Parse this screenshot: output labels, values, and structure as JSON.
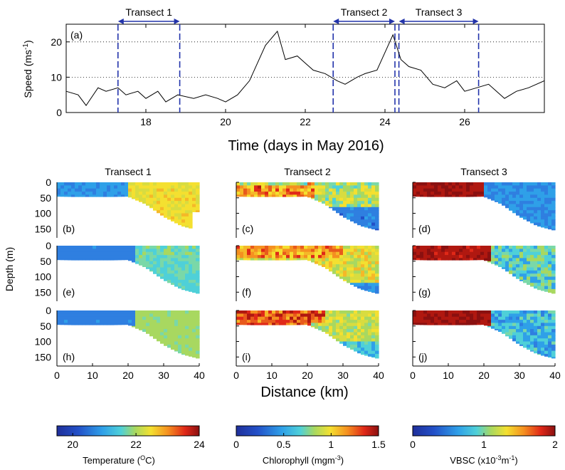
{
  "chart_data": [
    {
      "type": "line",
      "panel": "(a)",
      "ylabel": "Speed (ms-1)",
      "xlabel": "Time (days in May 2016)",
      "xlim": [
        16,
        28
      ],
      "ylim": [
        0,
        25
      ],
      "xticks": [
        "18",
        "20",
        "22",
        "24",
        "26"
      ],
      "yticks": [
        "0",
        "10",
        "20"
      ],
      "gridlines_y": [
        10,
        20
      ],
      "series": [
        {
          "name": "Speed",
          "x": [
            16.0,
            16.3,
            16.5,
            16.8,
            17.0,
            17.3,
            17.5,
            17.8,
            18.0,
            18.3,
            18.5,
            18.8,
            19.2,
            19.5,
            19.8,
            20.0,
            20.3,
            20.6,
            21.0,
            21.3,
            21.5,
            21.8,
            22.0,
            22.2,
            22.5,
            22.8,
            23.0,
            23.3,
            23.5,
            23.8,
            24.0,
            24.2,
            24.4,
            24.6,
            24.9,
            25.2,
            25.5,
            25.8,
            26.0,
            26.3,
            26.6,
            27.0,
            27.3,
            27.6,
            28.0
          ],
          "values": [
            6,
            5,
            2,
            7,
            6,
            7,
            5,
            6,
            4,
            6,
            3,
            5,
            4,
            5,
            4,
            3,
            5,
            9,
            19,
            23,
            15,
            16,
            14,
            12,
            11,
            9,
            8,
            10,
            11,
            12,
            17,
            22,
            15,
            13,
            12,
            8,
            7,
            9,
            6,
            7,
            8,
            4,
            6,
            7,
            9
          ]
        }
      ],
      "vlines": [
        {
          "label": "Transect 1",
          "start": 17.3,
          "end": 18.85
        },
        {
          "label": "Transect 2",
          "start": 22.7,
          "end": 24.25
        },
        {
          "label": "Transect 3",
          "start": 24.35,
          "end": 26.35
        }
      ]
    },
    {
      "type": "heatmap",
      "description_free": true,
      "columns": [
        "Transect 1",
        "Transect 2",
        "Transect 3"
      ],
      "rows_vars": [
        "Temperature",
        "Chlorophyll",
        "VBSC"
      ],
      "panel_labels": [
        [
          "(b)",
          "(c)",
          "(d)"
        ],
        [
          "(e)",
          "(f)",
          "(g)"
        ],
        [
          "(h)",
          "(i)",
          "(j)"
        ]
      ],
      "ylabel": "Depth (m)",
      "xlabel": "Distance (km)",
      "xlim": [
        0,
        40
      ],
      "ylim": [
        170,
        0
      ],
      "xticks": [
        "0",
        "10",
        "20",
        "30",
        "40"
      ],
      "yticks": [
        "0",
        "50",
        "100",
        "150"
      ],
      "seabed_depth_km": [
        0,
        5,
        10,
        15,
        20,
        25,
        30,
        35,
        40
      ],
      "seabed_depth_m": [
        45,
        46,
        46,
        46,
        45,
        70,
        110,
        140,
        155
      ],
      "colorbars": [
        {
          "label": "Temperature (OC)",
          "min": 19.5,
          "max": 24,
          "ticks": [
            "20",
            "22",
            "24"
          ]
        },
        {
          "label": "Chlorophyll (mgm-3)",
          "min": 0,
          "max": 1.5,
          "ticks": [
            "0",
            "0.5",
            "1",
            "1.5"
          ]
        },
        {
          "label": "VBSC (x10-3m-1)",
          "min": 0,
          "max": 2,
          "ticks": [
            "0",
            "1",
            "2"
          ]
        }
      ]
    }
  ],
  "labels": {
    "speed_ylabel_main": "Speed (ms",
    "speed_ylabel_sup": "-1",
    "speed_ylabel_end": ")",
    "time_xlabel": "Time (days in May 2016)",
    "depth_ylabel": "Depth (m)",
    "distance_xlabel": "Distance (km)",
    "transect1": "Transect 1",
    "transect2": "Transect 2",
    "transect3": "Transect 3",
    "panel_a": "(a)",
    "cb_temp_main": "Temperature (",
    "cb_temp_sup": "O",
    "cb_temp_end": "C)",
    "cb_chl_main": "Chlorophyll (mgm",
    "cb_chl_sup": "-3",
    "cb_chl_end": ")",
    "cb_vbsc_main": "VBSC (x10",
    "cb_vbsc_sup": "-3",
    "cb_vbsc_mid": "m",
    "cb_vbsc_sup2": "-1",
    "cb_vbsc_end": ")"
  }
}
